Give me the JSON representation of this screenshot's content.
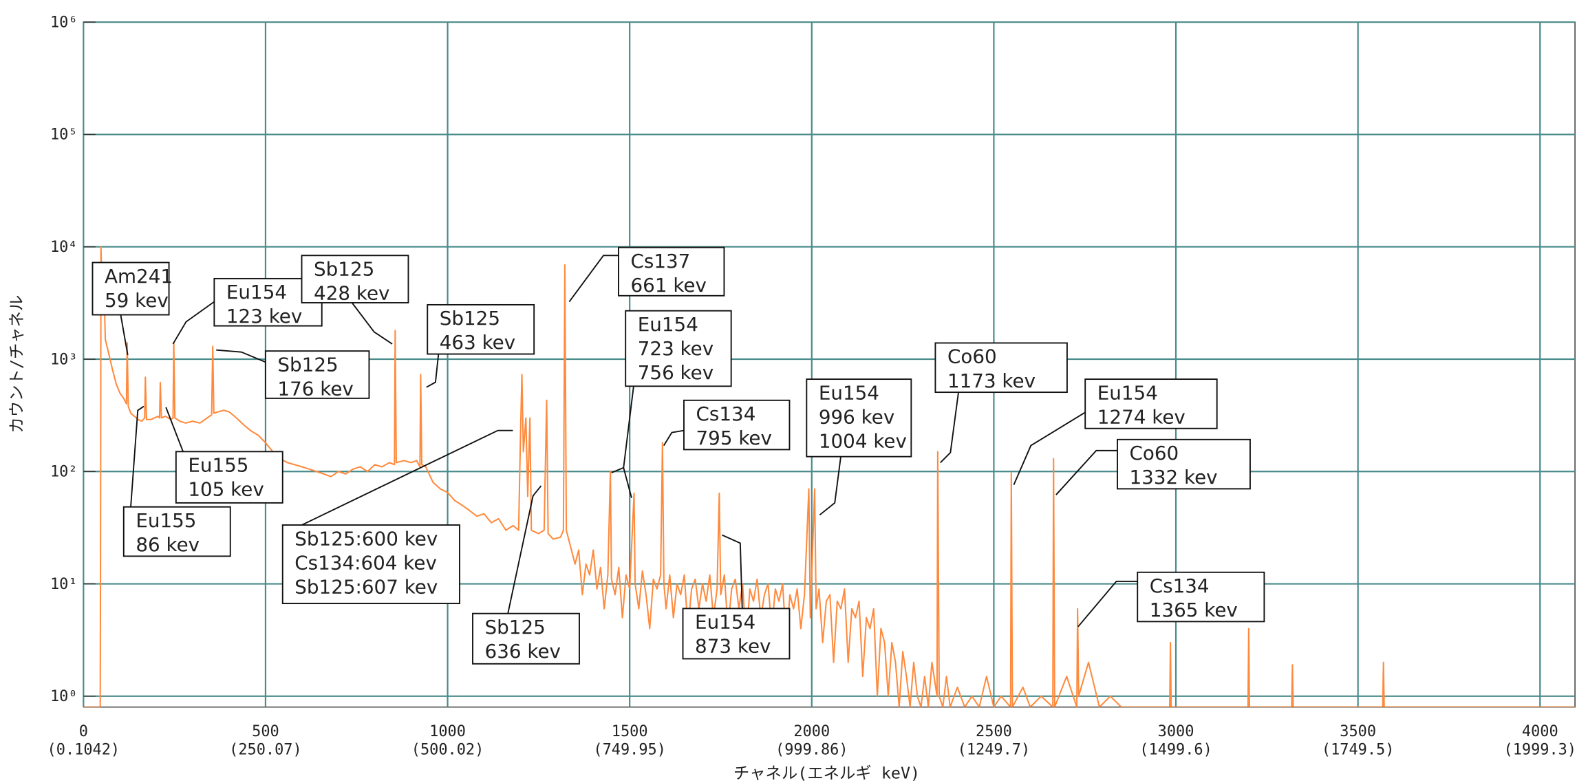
{
  "chart_data": {
    "type": "line",
    "xlabel": "チャネル(エネルギ keV)",
    "ylabel": "カウント/チャネル",
    "log_y": true,
    "grid": true,
    "color": "#ff8a3d",
    "xlim": [
      0,
      4096
    ],
    "ylim": [
      0.8,
      1000000
    ],
    "xticks": [
      0,
      500,
      1000,
      1500,
      2000,
      2500,
      3000,
      3500,
      4000
    ],
    "xtick_energy_labels": [
      "(0.1042)",
      "(250.07)",
      "(500.02)",
      "(749.95)",
      "(999.86)",
      "(1249.7)",
      "(1499.6)",
      "(1749.5)",
      "(1999.3)"
    ],
    "yticks": [
      {
        "value": 1,
        "label": "10⁰"
      },
      {
        "value": 10,
        "label": "10¹"
      },
      {
        "value": 100,
        "label": "10²"
      },
      {
        "value": 1000,
        "label": "10³"
      },
      {
        "value": 10000,
        "label": "10⁴"
      },
      {
        "value": 100000,
        "label": "10⁵"
      },
      {
        "value": 1000000,
        "label": "10⁶"
      }
    ],
    "x": [
      0,
      46,
      47,
      48,
      52,
      56,
      60,
      70,
      80,
      90,
      100,
      110,
      118,
      120,
      123,
      130,
      140,
      150,
      160,
      168,
      170,
      173,
      185,
      195,
      205,
      209,
      211,
      214,
      225,
      240,
      246,
      248,
      251,
      265,
      280,
      300,
      320,
      340,
      352,
      355,
      358,
      370,
      385,
      400,
      420,
      440,
      460,
      480,
      500,
      520,
      540,
      560,
      580,
      600,
      620,
      640,
      660,
      680,
      700,
      720,
      740,
      760,
      780,
      800,
      820,
      840,
      854,
      856,
      859,
      880,
      900,
      915,
      924,
      926,
      929,
      940,
      960,
      980,
      1000,
      1020,
      1040,
      1060,
      1080,
      1100,
      1120,
      1140,
      1160,
      1180,
      1195,
      1200,
      1204,
      1208,
      1215,
      1220,
      1226,
      1230,
      1250,
      1265,
      1272,
      1276,
      1290,
      1310,
      1318,
      1322,
      1326,
      1340,
      1350,
      1360,
      1370,
      1380,
      1390,
      1400,
      1410,
      1420,
      1430,
      1440,
      1447,
      1450,
      1460,
      1470,
      1480,
      1490,
      1500,
      1512,
      1515,
      1525,
      1535,
      1545,
      1555,
      1565,
      1575,
      1585,
      1590,
      1594,
      1600,
      1610,
      1620,
      1630,
      1640,
      1650,
      1660,
      1670,
      1680,
      1690,
      1700,
      1710,
      1720,
      1730,
      1740,
      1746,
      1750,
      1760,
      1770,
      1780,
      1790,
      1800,
      1810,
      1820,
      1830,
      1840,
      1850,
      1860,
      1870,
      1880,
      1890,
      1900,
      1910,
      1920,
      1930,
      1940,
      1950,
      1960,
      1970,
      1980,
      1992,
      1996,
      2008,
      2012,
      2020,
      2030,
      2040,
      2050,
      2060,
      2070,
      2080,
      2090,
      2100,
      2110,
      2120,
      2130,
      2140,
      2150,
      2160,
      2170,
      2180,
      2190,
      2200,
      2210,
      2220,
      2230,
      2240,
      2250,
      2260,
      2270,
      2280,
      2290,
      2300,
      2310,
      2320,
      2330,
      2344,
      2346,
      2350,
      2360,
      2370,
      2380,
      2400,
      2420,
      2440,
      2460,
      2480,
      2500,
      2520,
      2546,
      2548,
      2551,
      2580,
      2600,
      2630,
      2662,
      2664,
      2667,
      2700,
      2728,
      2730,
      2733,
      2760,
      2790,
      2820,
      2850,
      2983,
      2985,
      2987,
      3198,
      3200,
      3202,
      3318,
      3320,
      3322,
      3568,
      3570,
      3572,
      4096
    ],
    "values": [
      0.8,
      0.8,
      30,
      10000,
      3000,
      5000,
      1500,
      1100,
      800,
      600,
      500,
      450,
      400,
      1400,
      380,
      330,
      310,
      290,
      280,
      300,
      690,
      290,
      290,
      300,
      310,
      300,
      620,
      300,
      310,
      290,
      300,
      1400,
      300,
      280,
      270,
      280,
      270,
      300,
      320,
      1300,
      330,
      340,
      350,
      340,
      300,
      260,
      230,
      210,
      180,
      150,
      130,
      120,
      115,
      110,
      105,
      100,
      95,
      90,
      100,
      95,
      105,
      110,
      100,
      115,
      110,
      120,
      115,
      1800,
      120,
      125,
      120,
      125,
      110,
      730,
      115,
      110,
      80,
      70,
      65,
      55,
      50,
      45,
      40,
      42,
      35,
      38,
      30,
      33,
      30,
      200,
      730,
      150,
      300,
      60,
      300,
      30,
      28,
      30,
      430,
      28,
      25,
      26,
      30,
      6900,
      30,
      20,
      15,
      20,
      8,
      15,
      12,
      20,
      9,
      14,
      6,
      12,
      100,
      11,
      8,
      14,
      5,
      12,
      9,
      64,
      10,
      6,
      13,
      8,
      4,
      11,
      9,
      12,
      180,
      10,
      6,
      12,
      5,
      10,
      8,
      12,
      4,
      9,
      11,
      6,
      10,
      7,
      12,
      5,
      9,
      64,
      8,
      12,
      4,
      9,
      11,
      6,
      10,
      3,
      9,
      7,
      11,
      5,
      8,
      10,
      4,
      9,
      7,
      10,
      3,
      8,
      6,
      9,
      4,
      8,
      70,
      5,
      70,
      6,
      9,
      3,
      7,
      8,
      2,
      7,
      6,
      9,
      2,
      6,
      5,
      7,
      1.5,
      5,
      4,
      6,
      1,
      4,
      3,
      1,
      3,
      2,
      0.8,
      2.5,
      1.5,
      0.8,
      2,
      1,
      0.8,
      1.5,
      0.8,
      2,
      1,
      150,
      1,
      0.8,
      1.5,
      0.8,
      1.2,
      0.8,
      1,
      0.8,
      1.5,
      0.8,
      1,
      0.8,
      97,
      0.8,
      1.2,
      0.8,
      1,
      0.8,
      130,
      0.8,
      1.5,
      0.8,
      6,
      1,
      2,
      0.8,
      1,
      0.8,
      0.8,
      3,
      0.8,
      0.8,
      4,
      0.8,
      0.8,
      1.9,
      0.8,
      0.8,
      2,
      0.8,
      0.8
    ],
    "annotations": [
      {
        "text": [
          "Am241",
          "59 kev"
        ]
      },
      {
        "text": [
          "Eu154",
          "123 kev"
        ]
      },
      {
        "text": [
          "Sb125",
          "428 kev"
        ]
      },
      {
        "text": [
          "Sb125",
          "176 kev"
        ]
      },
      {
        "text": [
          "Sb125",
          "463 kev"
        ]
      },
      {
        "text": [
          "Eu155",
          "105 kev"
        ]
      },
      {
        "text": [
          "Eu155",
          "86 kev"
        ]
      },
      {
        "text": [
          "Sb125:600 kev",
          "Cs134:604 kev",
          "Sb125:607 kev"
        ]
      },
      {
        "text": [
          "Cs137",
          "661 kev"
        ]
      },
      {
        "text": [
          "Eu154",
          "723 kev",
          "756 kev"
        ]
      },
      {
        "text": [
          "Cs134",
          "795 kev"
        ]
      },
      {
        "text": [
          "Sb125",
          "636 kev"
        ]
      },
      {
        "text": [
          "Eu154",
          "873 kev"
        ]
      },
      {
        "text": [
          "Eu154",
          "996 kev",
          "1004 kev"
        ]
      },
      {
        "text": [
          "Co60",
          "1173 kev"
        ]
      },
      {
        "text": [
          "Eu154",
          "1274 kev"
        ]
      },
      {
        "text": [
          "Co60",
          "1332 kev"
        ]
      },
      {
        "text": [
          "Cs134",
          "1365 kev"
        ]
      }
    ]
  }
}
